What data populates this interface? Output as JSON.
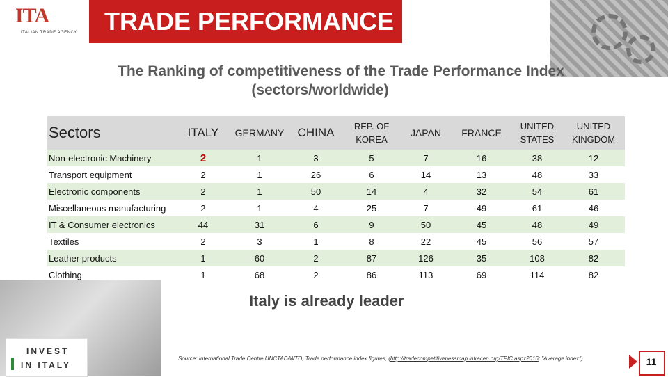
{
  "header": {
    "logo_text": "ITA",
    "logo_sub": "ITALIAN TRADE AGENCY",
    "title": "TRADE PERFORMANCE"
  },
  "subtitle_line1": "The Ranking of competitiveness of the Trade Performance Index",
  "subtitle_line2": "(sectors/worldwide)",
  "table": {
    "headers": [
      "Sectors",
      "ITALY",
      "GERMANY",
      "CHINA",
      "REP. OF KOREA",
      "JAPAN",
      "FRANCE",
      "UNITED STATES",
      "UNITED KINGDOM"
    ],
    "rows": [
      {
        "name": "Non-electronic Machinery",
        "values": [
          "2",
          "1",
          "3",
          "5",
          "7",
          "16",
          "38",
          "12"
        ]
      },
      {
        "name": "Transport equipment",
        "values": [
          "2",
          "1",
          "26",
          "6",
          "14",
          "13",
          "48",
          "33"
        ]
      },
      {
        "name": "Electronic components",
        "values": [
          "2",
          "1",
          "50",
          "14",
          "4",
          "32",
          "54",
          "61"
        ]
      },
      {
        "name": "Miscellaneous manufacturing",
        "values": [
          "2",
          "1",
          "4",
          "25",
          "7",
          "49",
          "61",
          "46"
        ]
      },
      {
        "name": "IT & Consumer electronics",
        "values": [
          "44",
          "31",
          "6",
          "9",
          "50",
          "45",
          "48",
          "49"
        ]
      },
      {
        "name": "Textiles",
        "values": [
          "2",
          "3",
          "1",
          "8",
          "22",
          "45",
          "56",
          "57"
        ]
      },
      {
        "name": "Leather products",
        "values": [
          "1",
          "60",
          "2",
          "87",
          "126",
          "35",
          "108",
          "82"
        ]
      },
      {
        "name": "Clothing",
        "values": [
          "1",
          "68",
          "2",
          "86",
          "113",
          "69",
          "114",
          "82"
        ]
      }
    ]
  },
  "leader_text": "Italy is already leader",
  "invest": {
    "line1": "INVEST",
    "line2": "IN ITALY"
  },
  "source": {
    "prefix": "Source: International Trade Centre UNCTAD/WTO, Trade performance index figures, (",
    "link": "http://tradecompetitivenessmap.intracen.org/TPIC.aspx2016",
    "suffix": "; \"Average index\")"
  },
  "page_number": "11",
  "colors": {
    "brand_red": "#c81e1e",
    "row_green": "#e2efda",
    "header_gray": "#d9d9d9",
    "highlight_red": "#c00000"
  }
}
